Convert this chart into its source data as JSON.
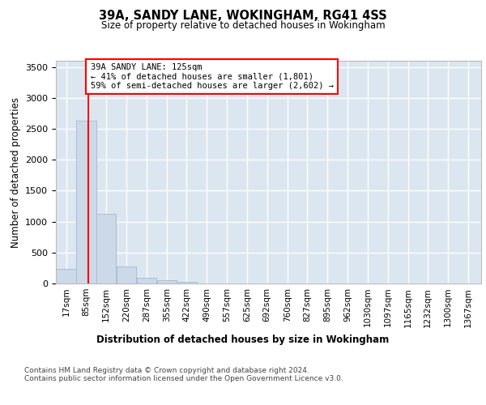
{
  "title": "39A, SANDY LANE, WOKINGHAM, RG41 4SS",
  "subtitle": "Size of property relative to detached houses in Wokingham",
  "xlabel": "Distribution of detached houses by size in Wokingham",
  "ylabel": "Number of detached properties",
  "bar_color": "#ccd9e8",
  "bar_edge_color": "#a8bfd4",
  "background_color": "#dce6f0",
  "grid_color": "#ffffff",
  "annotation_text": "39A SANDY LANE: 125sqm\n← 41% of detached houses are smaller (1,801)\n59% of semi-detached houses are larger (2,602) →",
  "red_line_x": 125,
  "categories": [
    "17sqm",
    "85sqm",
    "152sqm",
    "220sqm",
    "287sqm",
    "355sqm",
    "422sqm",
    "490sqm",
    "557sqm",
    "625sqm",
    "692sqm",
    "760sqm",
    "827sqm",
    "895sqm",
    "962sqm",
    "1030sqm",
    "1097sqm",
    "1165sqm",
    "1232sqm",
    "1300sqm",
    "1367sqm"
  ],
  "bin_edges": [
    17,
    85,
    152,
    220,
    287,
    355,
    422,
    490,
    557,
    625,
    692,
    760,
    827,
    895,
    962,
    1030,
    1097,
    1165,
    1232,
    1300,
    1367
  ],
  "values": [
    230,
    2630,
    1130,
    270,
    90,
    50,
    30,
    0,
    0,
    0,
    0,
    0,
    0,
    0,
    0,
    0,
    0,
    0,
    0,
    0,
    0
  ],
  "ylim": [
    0,
    3600
  ],
  "yticks": [
    0,
    500,
    1000,
    1500,
    2000,
    2500,
    3000,
    3500
  ],
  "footnote1": "Contains HM Land Registry data © Crown copyright and database right 2024.",
  "footnote2": "Contains public sector information licensed under the Open Government Licence v3.0."
}
